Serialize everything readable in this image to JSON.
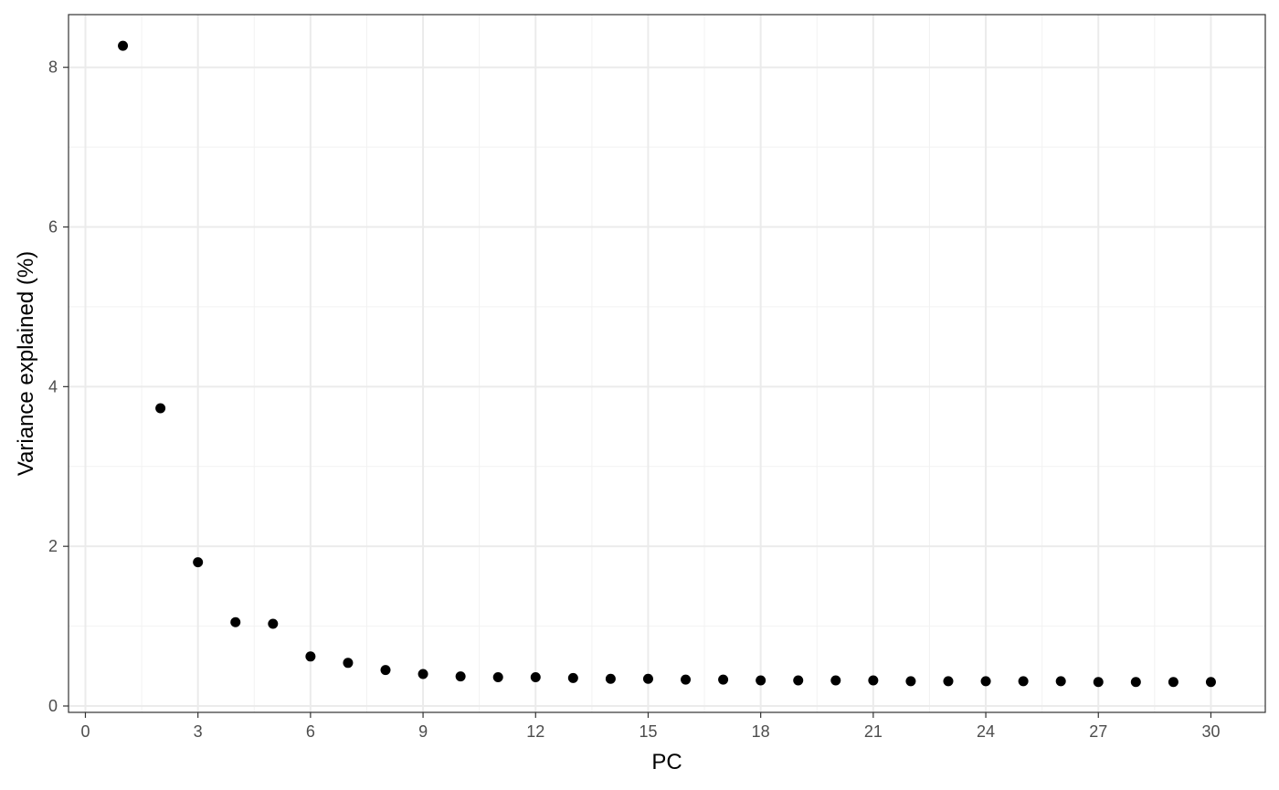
{
  "chart_data": {
    "type": "scatter",
    "title": "",
    "xlabel": "PC",
    "ylabel": "Variance explained (%)",
    "xlim": [
      -0.45,
      31.45
    ],
    "ylim": [
      -0.08,
      8.66
    ],
    "x_ticks": [
      0,
      3,
      6,
      9,
      12,
      15,
      18,
      21,
      24,
      27,
      30
    ],
    "y_ticks": [
      0,
      2,
      4,
      6,
      8
    ],
    "grid": true,
    "legend": "none",
    "point_color": "#000000",
    "series": [
      {
        "x": [
          1,
          2,
          3,
          4,
          5,
          6,
          7,
          8,
          9,
          10,
          11,
          12,
          13,
          14,
          15,
          16,
          17,
          18,
          19,
          20,
          21,
          22,
          23,
          24,
          25,
          26,
          27,
          28,
          29,
          30
        ],
        "values": [
          8.27,
          3.73,
          1.8,
          1.05,
          1.03,
          0.62,
          0.54,
          0.45,
          0.4,
          0.37,
          0.36,
          0.36,
          0.35,
          0.34,
          0.34,
          0.33,
          0.33,
          0.32,
          0.32,
          0.32,
          0.32,
          0.31,
          0.31,
          0.31,
          0.31,
          0.31,
          0.3,
          0.3,
          0.3,
          0.3
        ]
      }
    ]
  }
}
